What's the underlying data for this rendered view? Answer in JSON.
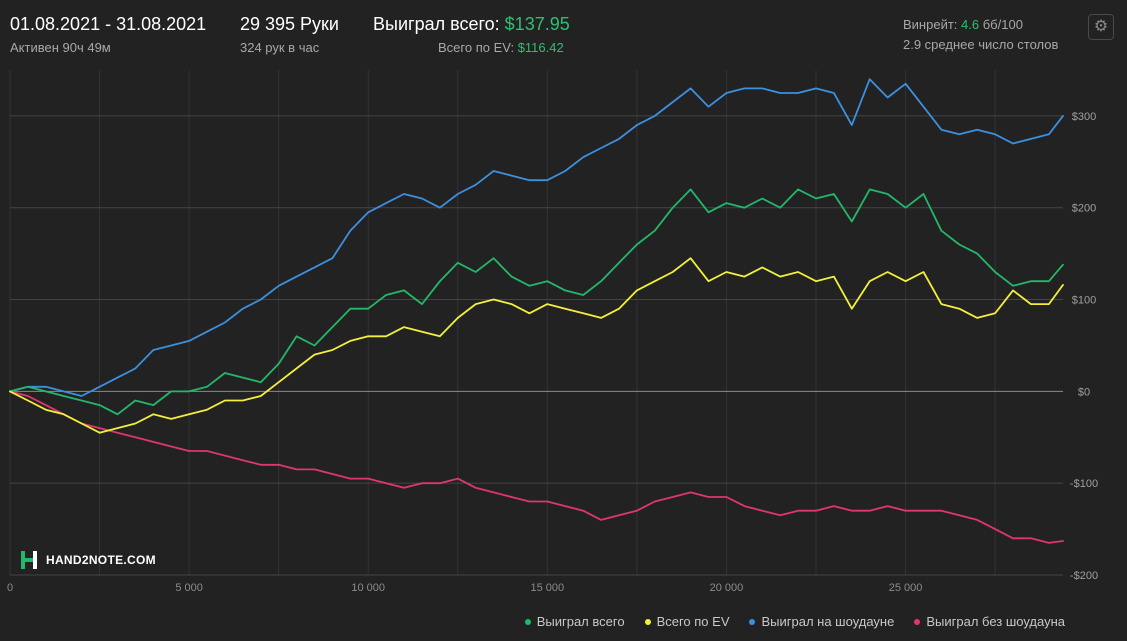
{
  "header": {
    "date_range": "01.08.2021 - 31.08.2021",
    "active_time": "Активен 90ч 49м",
    "hands": "29 395 Руки",
    "hands_per_hour": "324 рук в час",
    "won_total_label": "Выиграл всего:",
    "won_total_value": "$137.95",
    "ev_label": "Всего по EV:",
    "ev_value": "$116.42",
    "winrate_label": "Винрейт:",
    "winrate_value": "4.6",
    "winrate_unit": "бб/100",
    "tables_text": "2.9 среднее число столов",
    "settings_icon": "gear-icon"
  },
  "logo": {
    "text": "HAND2NOTE.COM",
    "icon": "h2n-logo-icon"
  },
  "colors": {
    "background": "#222222",
    "won_total": "#22b86a",
    "ev": "#f2f03c",
    "showdown": "#3d8fe0",
    "non_showdown": "#e0366e",
    "grid": "#333333",
    "zero_line": "#8a8a8a"
  },
  "chart_data": {
    "type": "line",
    "x_label": "",
    "y_label": "",
    "x_range": [
      0,
      29395
    ],
    "y_range": [
      -200,
      350
    ],
    "x_ticks": [
      0,
      5000,
      10000,
      15000,
      20000,
      25000
    ],
    "x_tick_labels": [
      "0",
      "5 000",
      "10 000",
      "15 000",
      "20 000",
      "25 000"
    ],
    "y_ticks": [
      300,
      200,
      100,
      0,
      -100,
      -200
    ],
    "y_tick_labels": [
      "$300",
      "$200",
      "$100",
      "$0",
      "-$100",
      "-$200"
    ],
    "grid": true,
    "legend_position": "bottom-right",
    "series": [
      {
        "name": "Выиграл всего",
        "color": "#22b86a",
        "points": [
          [
            0,
            0
          ],
          [
            500,
            5
          ],
          [
            1000,
            0
          ],
          [
            1500,
            -5
          ],
          [
            2000,
            -10
          ],
          [
            2500,
            -15
          ],
          [
            3000,
            -25
          ],
          [
            3500,
            -10
          ],
          [
            4000,
            -15
          ],
          [
            4500,
            0
          ],
          [
            5000,
            0
          ],
          [
            5500,
            5
          ],
          [
            6000,
            20
          ],
          [
            6500,
            15
          ],
          [
            7000,
            10
          ],
          [
            7500,
            30
          ],
          [
            8000,
            60
          ],
          [
            8500,
            50
          ],
          [
            9000,
            70
          ],
          [
            9500,
            90
          ],
          [
            10000,
            90
          ],
          [
            10500,
            105
          ],
          [
            11000,
            110
          ],
          [
            11500,
            95
          ],
          [
            12000,
            120
          ],
          [
            12500,
            140
          ],
          [
            13000,
            130
          ],
          [
            13500,
            145
          ],
          [
            14000,
            125
          ],
          [
            14500,
            115
          ],
          [
            15000,
            120
          ],
          [
            15500,
            110
          ],
          [
            16000,
            105
          ],
          [
            16500,
            120
          ],
          [
            17000,
            140
          ],
          [
            17500,
            160
          ],
          [
            18000,
            175
          ],
          [
            18500,
            200
          ],
          [
            19000,
            220
          ],
          [
            19500,
            195
          ],
          [
            20000,
            205
          ],
          [
            20500,
            200
          ],
          [
            21000,
            210
          ],
          [
            21500,
            200
          ],
          [
            22000,
            220
          ],
          [
            22500,
            210
          ],
          [
            23000,
            215
          ],
          [
            23500,
            185
          ],
          [
            24000,
            220
          ],
          [
            24500,
            215
          ],
          [
            25000,
            200
          ],
          [
            25500,
            215
          ],
          [
            26000,
            175
          ],
          [
            26500,
            160
          ],
          [
            27000,
            150
          ],
          [
            27500,
            130
          ],
          [
            28000,
            115
          ],
          [
            28500,
            120
          ],
          [
            29000,
            120
          ],
          [
            29395,
            138
          ]
        ]
      },
      {
        "name": "Всего по EV",
        "color": "#f2f03c",
        "points": [
          [
            0,
            0
          ],
          [
            500,
            -10
          ],
          [
            1000,
            -20
          ],
          [
            1500,
            -25
          ],
          [
            2000,
            -35
          ],
          [
            2500,
            -45
          ],
          [
            3000,
            -40
          ],
          [
            3500,
            -35
          ],
          [
            4000,
            -25
          ],
          [
            4500,
            -30
          ],
          [
            5000,
            -25
          ],
          [
            5500,
            -20
          ],
          [
            6000,
            -10
          ],
          [
            6500,
            -10
          ],
          [
            7000,
            -5
          ],
          [
            7500,
            10
          ],
          [
            8000,
            25
          ],
          [
            8500,
            40
          ],
          [
            9000,
            45
          ],
          [
            9500,
            55
          ],
          [
            10000,
            60
          ],
          [
            10500,
            60
          ],
          [
            11000,
            70
          ],
          [
            11500,
            65
          ],
          [
            12000,
            60
          ],
          [
            12500,
            80
          ],
          [
            13000,
            95
          ],
          [
            13500,
            100
          ],
          [
            14000,
            95
          ],
          [
            14500,
            85
          ],
          [
            15000,
            95
          ],
          [
            15500,
            90
          ],
          [
            16000,
            85
          ],
          [
            16500,
            80
          ],
          [
            17000,
            90
          ],
          [
            17500,
            110
          ],
          [
            18000,
            120
          ],
          [
            18500,
            130
          ],
          [
            19000,
            145
          ],
          [
            19500,
            120
          ],
          [
            20000,
            130
          ],
          [
            20500,
            125
          ],
          [
            21000,
            135
          ],
          [
            21500,
            125
          ],
          [
            22000,
            130
          ],
          [
            22500,
            120
          ],
          [
            23000,
            125
          ],
          [
            23500,
            90
          ],
          [
            24000,
            120
          ],
          [
            24500,
            130
          ],
          [
            25000,
            120
          ],
          [
            25500,
            130
          ],
          [
            26000,
            95
          ],
          [
            26500,
            90
          ],
          [
            27000,
            80
          ],
          [
            27500,
            85
          ],
          [
            28000,
            110
          ],
          [
            28500,
            95
          ],
          [
            29000,
            95
          ],
          [
            29395,
            116
          ]
        ]
      },
      {
        "name": "Выиграл на шоудауне",
        "color": "#3d8fe0",
        "points": [
          [
            0,
            0
          ],
          [
            500,
            5
          ],
          [
            1000,
            5
          ],
          [
            1500,
            0
          ],
          [
            2000,
            -5
          ],
          [
            2500,
            5
          ],
          [
            3000,
            15
          ],
          [
            3500,
            25
          ],
          [
            4000,
            45
          ],
          [
            4500,
            50
          ],
          [
            5000,
            55
          ],
          [
            5500,
            65
          ],
          [
            6000,
            75
          ],
          [
            6500,
            90
          ],
          [
            7000,
            100
          ],
          [
            7500,
            115
          ],
          [
            8000,
            125
          ],
          [
            8500,
            135
          ],
          [
            9000,
            145
          ],
          [
            9500,
            175
          ],
          [
            10000,
            195
          ],
          [
            10500,
            205
          ],
          [
            11000,
            215
          ],
          [
            11500,
            210
          ],
          [
            12000,
            200
          ],
          [
            12500,
            215
          ],
          [
            13000,
            225
          ],
          [
            13500,
            240
          ],
          [
            14000,
            235
          ],
          [
            14500,
            230
          ],
          [
            15000,
            230
          ],
          [
            15500,
            240
          ],
          [
            16000,
            255
          ],
          [
            16500,
            265
          ],
          [
            17000,
            275
          ],
          [
            17500,
            290
          ],
          [
            18000,
            300
          ],
          [
            18500,
            315
          ],
          [
            19000,
            330
          ],
          [
            19500,
            310
          ],
          [
            20000,
            325
          ],
          [
            20500,
            330
          ],
          [
            21000,
            330
          ],
          [
            21500,
            325
          ],
          [
            22000,
            325
          ],
          [
            22500,
            330
          ],
          [
            23000,
            325
          ],
          [
            23500,
            290
          ],
          [
            24000,
            340
          ],
          [
            24500,
            320
          ],
          [
            25000,
            335
          ],
          [
            25500,
            310
          ],
          [
            26000,
            285
          ],
          [
            26500,
            280
          ],
          [
            27000,
            285
          ],
          [
            27500,
            280
          ],
          [
            28000,
            270
          ],
          [
            28500,
            275
          ],
          [
            29000,
            280
          ],
          [
            29395,
            300
          ]
        ]
      },
      {
        "name": "Выиграл без шоудауна",
        "color": "#e0366e",
        "points": [
          [
            0,
            0
          ],
          [
            500,
            -5
          ],
          [
            1000,
            -15
          ],
          [
            1500,
            -25
          ],
          [
            2000,
            -35
          ],
          [
            2500,
            -40
          ],
          [
            3000,
            -45
          ],
          [
            3500,
            -50
          ],
          [
            4000,
            -55
          ],
          [
            4500,
            -60
          ],
          [
            5000,
            -65
          ],
          [
            5500,
            -65
          ],
          [
            6000,
            -70
          ],
          [
            6500,
            -75
          ],
          [
            7000,
            -80
          ],
          [
            7500,
            -80
          ],
          [
            8000,
            -85
          ],
          [
            8500,
            -85
          ],
          [
            9000,
            -90
          ],
          [
            9500,
            -95
          ],
          [
            10000,
            -95
          ],
          [
            10500,
            -100
          ],
          [
            11000,
            -105
          ],
          [
            11500,
            -100
          ],
          [
            12000,
            -100
          ],
          [
            12500,
            -95
          ],
          [
            13000,
            -105
          ],
          [
            13500,
            -110
          ],
          [
            14000,
            -115
          ],
          [
            14500,
            -120
          ],
          [
            15000,
            -120
          ],
          [
            15500,
            -125
          ],
          [
            16000,
            -130
          ],
          [
            16500,
            -140
          ],
          [
            17000,
            -135
          ],
          [
            17500,
            -130
          ],
          [
            18000,
            -120
          ],
          [
            18500,
            -115
          ],
          [
            19000,
            -110
          ],
          [
            19500,
            -115
          ],
          [
            20000,
            -115
          ],
          [
            20500,
            -125
          ],
          [
            21000,
            -130
          ],
          [
            21500,
            -135
          ],
          [
            22000,
            -130
          ],
          [
            22500,
            -130
          ],
          [
            23000,
            -125
          ],
          [
            23500,
            -130
          ],
          [
            24000,
            -130
          ],
          [
            24500,
            -125
          ],
          [
            25000,
            -130
          ],
          [
            25500,
            -130
          ],
          [
            26000,
            -130
          ],
          [
            26500,
            -135
          ],
          [
            27000,
            -140
          ],
          [
            27500,
            -150
          ],
          [
            28000,
            -160
          ],
          [
            28500,
            -160
          ],
          [
            29000,
            -165
          ],
          [
            29395,
            -163
          ]
        ]
      }
    ]
  }
}
